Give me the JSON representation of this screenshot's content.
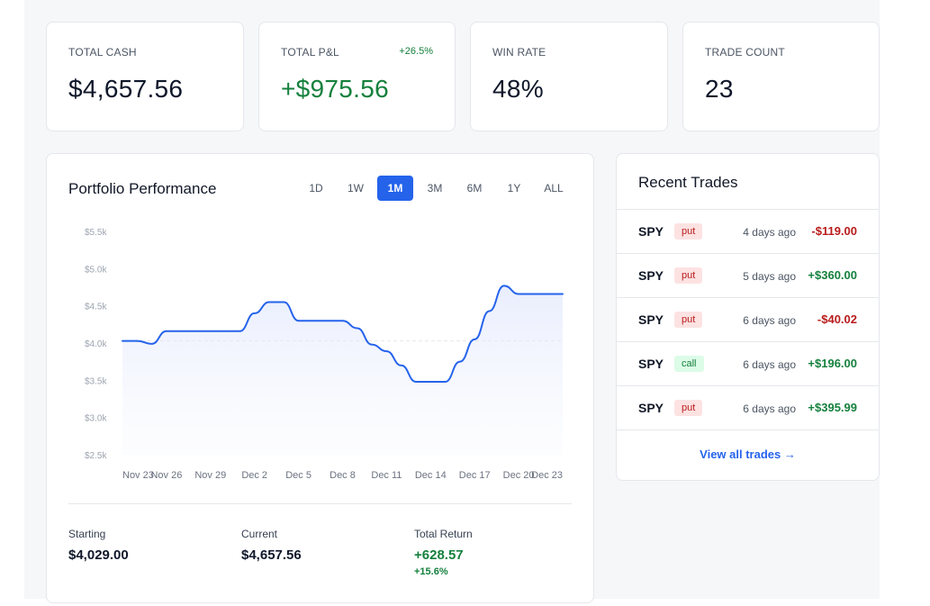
{
  "stats": [
    {
      "label": "TOTAL CASH",
      "value": "$4,657.56",
      "badge": ""
    },
    {
      "label": "TOTAL P&L",
      "value": "+$975.56",
      "badge": "+26.5%"
    },
    {
      "label": "WIN RATE",
      "value": "48%",
      "badge": ""
    },
    {
      "label": "TRADE COUNT",
      "value": "23",
      "badge": ""
    }
  ],
  "performance": {
    "title": "Portfolio Performance",
    "ranges": [
      "1D",
      "1W",
      "1M",
      "3M",
      "6M",
      "1Y",
      "ALL"
    ],
    "active_range": "1M",
    "summary": {
      "starting_label": "Starting",
      "starting_value": "$4,029.00",
      "current_label": "Current",
      "current_value": "$4,657.56",
      "return_label": "Total Return",
      "return_value": "+628.57",
      "return_pct": "+15.6%"
    }
  },
  "chart_data": {
    "type": "area",
    "y_ticks": [
      "$5.5k",
      "$5.0k",
      "$4.5k",
      "$4.0k",
      "$3.5k",
      "$3.0k",
      "$2.5k"
    ],
    "x_ticks": [
      "Nov 23",
      "Nov 26",
      "Nov 29",
      "Dec 2",
      "Dec 5",
      "Dec 8",
      "Dec 11",
      "Dec 14",
      "Dec 17",
      "Dec 20",
      "Dec 23"
    ],
    "ylim": [
      2500,
      5500
    ],
    "x": [
      "Nov 23",
      "Nov 24",
      "Nov 25",
      "Nov 26",
      "Nov 27",
      "Nov 28",
      "Nov 29",
      "Nov 30",
      "Dec 1",
      "Dec 2",
      "Dec 3",
      "Dec 4",
      "Dec 5",
      "Dec 6",
      "Dec 7",
      "Dec 8",
      "Dec 9",
      "Dec 10",
      "Dec 11",
      "Dec 12",
      "Dec 13",
      "Dec 14",
      "Dec 15",
      "Dec 16",
      "Dec 17",
      "Dec 18",
      "Dec 19",
      "Dec 20",
      "Dec 21",
      "Dec 22",
      "Dec 23"
    ],
    "values": [
      4029,
      4029,
      3990,
      4160,
      4160,
      4160,
      4160,
      4160,
      4160,
      4400,
      4550,
      4550,
      4300,
      4300,
      4300,
      4300,
      4200,
      3980,
      3890,
      3700,
      3480,
      3480,
      3480,
      3750,
      4050,
      4430,
      4770,
      4660,
      4660,
      4660,
      4660
    ],
    "baseline": 4029,
    "colors": {
      "line": "#2563eb",
      "fill": "#eef2ff",
      "baseline": "#e5e7eb"
    }
  },
  "trades": {
    "title": "Recent Trades",
    "items": [
      {
        "symbol": "SPY",
        "type": "put",
        "time": "4 days ago",
        "amount": "-$119.00",
        "sign": "neg"
      },
      {
        "symbol": "SPY",
        "type": "put",
        "time": "5 days ago",
        "amount": "+$360.00",
        "sign": "pos"
      },
      {
        "symbol": "SPY",
        "type": "put",
        "time": "6 days ago",
        "amount": "-$40.02",
        "sign": "neg"
      },
      {
        "symbol": "SPY",
        "type": "call",
        "time": "6 days ago",
        "amount": "+$196.00",
        "sign": "pos"
      },
      {
        "symbol": "SPY",
        "type": "put",
        "time": "6 days ago",
        "amount": "+$395.99",
        "sign": "pos"
      }
    ],
    "view_all": "View all trades →"
  }
}
